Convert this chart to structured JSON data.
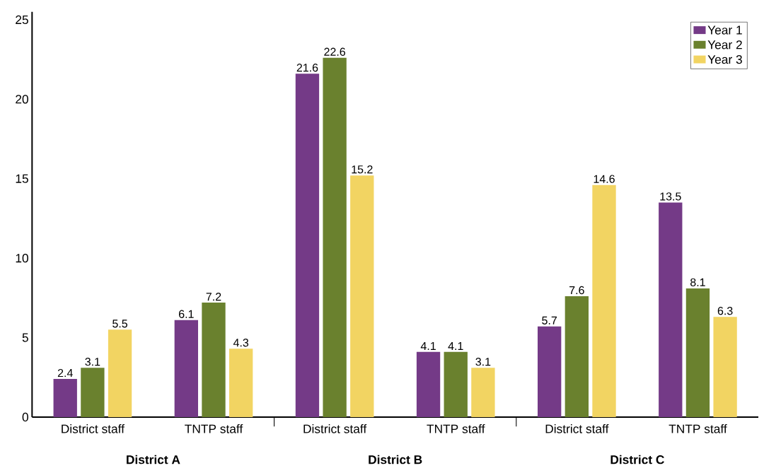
{
  "chart_data": {
    "type": "bar",
    "categories": [
      "District staff",
      "TNTP staff",
      "District staff",
      "TNTP staff",
      "District staff",
      "TNTP staff"
    ],
    "series": [
      {
        "name": "Year 1",
        "color": "#743a87",
        "values": [
          2.4,
          6.1,
          21.6,
          4.1,
          5.7,
          13.5
        ]
      },
      {
        "name": "Year 2",
        "color": "#6a812e",
        "values": [
          3.1,
          7.2,
          22.6,
          4.1,
          7.6,
          8.1
        ]
      },
      {
        "name": "Year 3",
        "color": "#f2d462",
        "values": [
          5.5,
          4.3,
          15.2,
          3.1,
          14.6,
          6.3
        ]
      }
    ],
    "annotations": [
      "District A",
      "District B",
      "District C"
    ],
    "ylim": [
      0,
      25.5
    ],
    "yticks": [
      0,
      5,
      10,
      15,
      20,
      25
    ],
    "data_labels": true,
    "grid": false,
    "legend": "top right"
  }
}
